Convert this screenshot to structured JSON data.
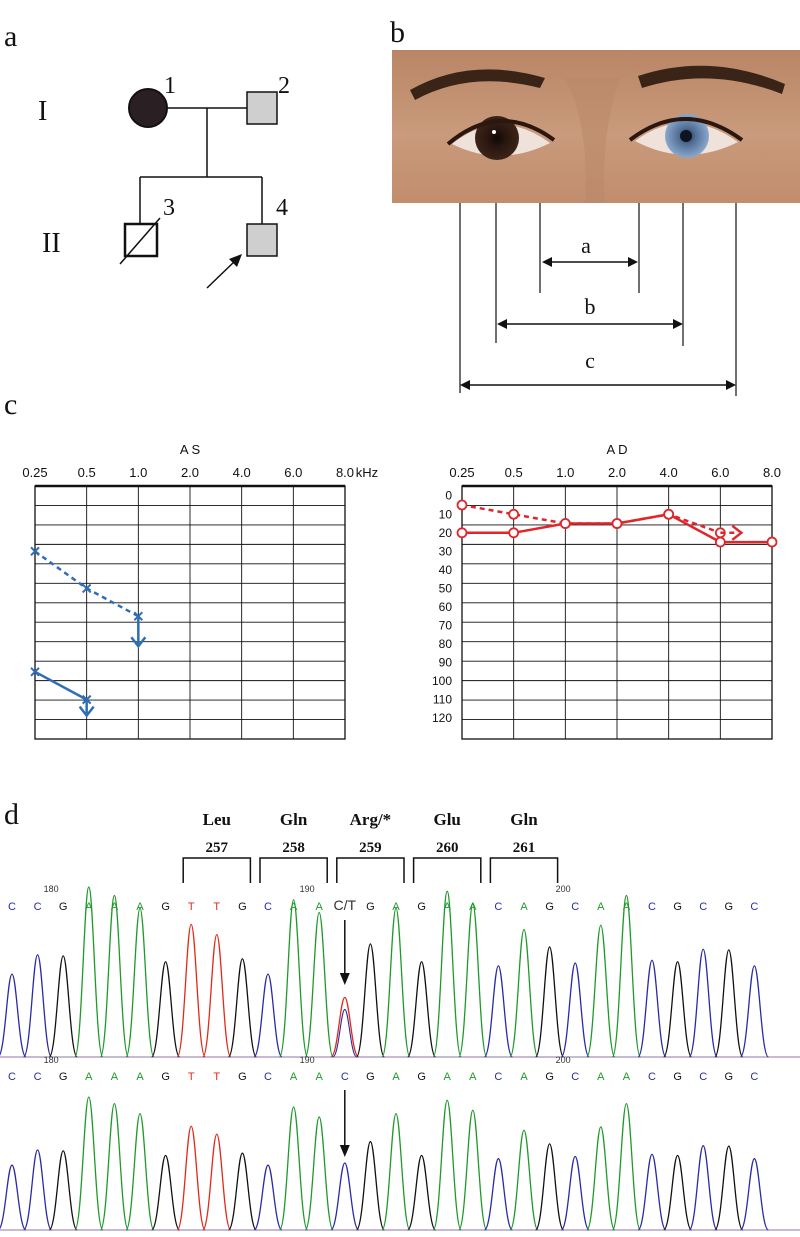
{
  "panels": {
    "a": "a",
    "b": "b",
    "c": "c",
    "d": "d"
  },
  "pedigree": {
    "generations": [
      "I",
      "II"
    ],
    "members": [
      {
        "id": "1",
        "sex": "female",
        "status": "affected"
      },
      {
        "id": "2",
        "sex": "male",
        "status": "partially affected"
      },
      {
        "id": "3",
        "sex": "male",
        "status": "deceased"
      },
      {
        "id": "4",
        "sex": "male",
        "status": "proband, partially affected"
      }
    ]
  },
  "eye_photo": {
    "measurements": [
      "a",
      "b",
      "c"
    ],
    "left_eye_color": "#3b2418",
    "right_eye_color": "#6f8fb8"
  },
  "audiograms": {
    "freq_labels": [
      "0.25",
      "0.5",
      "1.0",
      "2.0",
      "4.0",
      "6.0",
      "8.0"
    ],
    "unit": "kHz",
    "db_labels": [
      "0",
      "10",
      "20",
      "30",
      "40",
      "50",
      "60",
      "70",
      "80",
      "90",
      "100",
      "110",
      "120"
    ],
    "left": {
      "title": "A S",
      "color": "#2f6eb5"
    },
    "right": {
      "title": "A D",
      "color": "#e0262a"
    }
  },
  "chart_data": [
    {
      "type": "line",
      "title": "A S",
      "x": [
        "0.25",
        "0.5",
        "1.0",
        "2.0",
        "4.0",
        "6.0",
        "8.0"
      ],
      "xlabel": "kHz",
      "ylim": [
        0,
        120
      ],
      "y_inverted": true,
      "series": [
        {
          "style": "dashed",
          "values": [
            30,
            50,
            65,
            null,
            null,
            null,
            null
          ],
          "no_response_after": "1.0"
        },
        {
          "style": "solid",
          "values": [
            95,
            110,
            null,
            null,
            null,
            null,
            null
          ],
          "no_response_after": "0.5"
        }
      ]
    },
    {
      "type": "line",
      "title": "A D",
      "x": [
        "0.25",
        "0.5",
        "1.0",
        "2.0",
        "4.0",
        "6.0",
        "8.0"
      ],
      "xlabel": "",
      "ylim": [
        0,
        120
      ],
      "y_inverted": true,
      "series": [
        {
          "style": "dashed",
          "values": [
            5,
            10,
            15,
            15,
            10,
            20,
            null
          ]
        },
        {
          "style": "solid",
          "values": [
            20,
            20,
            15,
            15,
            10,
            25,
            25
          ]
        }
      ]
    }
  ],
  "sequence": {
    "codons": [
      {
        "aa": "Leu",
        "num": "257"
      },
      {
        "aa": "Gln",
        "num": "258"
      },
      {
        "aa": "Arg/*",
        "num": "259"
      },
      {
        "aa": "Glu",
        "num": "260"
      },
      {
        "aa": "Gln",
        "num": "261"
      }
    ],
    "top_bases": [
      "C",
      "C",
      "G",
      "A",
      "A",
      "A",
      "G",
      "T",
      "T",
      "G",
      "C",
      "A",
      "A",
      "C/T",
      "G",
      "A",
      "G",
      "A",
      "A",
      "C",
      "A",
      "G",
      "C",
      "A",
      "A",
      "C",
      "G",
      "C",
      "G",
      "C"
    ],
    "bottom_bases": [
      "C",
      "C",
      "G",
      "A",
      "A",
      "A",
      "G",
      "T",
      "T",
      "G",
      "C",
      "A",
      "A",
      "C",
      "G",
      "A",
      "G",
      "A",
      "A",
      "C",
      "A",
      "G",
      "C",
      "A",
      "A",
      "C",
      "G",
      "C",
      "G",
      "C"
    ],
    "positions": {
      "p180": "180",
      "p190": "190",
      "p200": "200"
    },
    "base_colors": {
      "A": "#1f9a2a",
      "C": "#2a2aa8",
      "G": "#111111",
      "T": "#e02a1a"
    }
  }
}
